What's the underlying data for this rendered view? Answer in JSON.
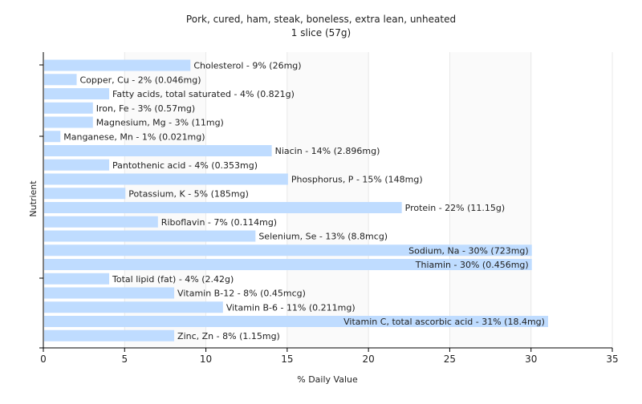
{
  "chart_data": {
    "type": "bar",
    "orientation": "horizontal",
    "title": "Pork, cured, ham, steak, boneless, extra lean, unheated",
    "subtitle": "1 slice (57g)",
    "xlabel": "% Daily Value",
    "ylabel": "Nutrient",
    "xlim": [
      0,
      35
    ],
    "xticks": [
      0,
      5,
      10,
      15,
      20,
      25,
      30,
      35
    ],
    "grid": true,
    "categories": [
      "Cholesterol",
      "Copper, Cu",
      "Fatty acids, total saturated",
      "Iron, Fe",
      "Magnesium, Mg",
      "Manganese, Mn",
      "Niacin",
      "Pantothenic acid",
      "Phosphorus, P",
      "Potassium, K",
      "Protein",
      "Riboflavin",
      "Selenium, Se",
      "Sodium, Na",
      "Thiamin",
      "Total lipid (fat)",
      "Vitamin B-12",
      "Vitamin B-6",
      "Vitamin C, total ascorbic acid",
      "Zinc, Zn"
    ],
    "values": [
      9,
      2,
      4,
      3,
      3,
      1,
      14,
      4,
      15,
      5,
      22,
      7,
      13,
      30,
      30,
      4,
      8,
      11,
      31,
      8
    ],
    "data_labels": [
      "Cholesterol - 9% (26mg)",
      "Copper, Cu - 2% (0.046mg)",
      "Fatty acids, total saturated - 4% (0.821g)",
      "Iron, Fe - 3% (0.57mg)",
      "Magnesium, Mg - 3% (11mg)",
      "Manganese, Mn - 1% (0.021mg)",
      "Niacin - 14% (2.896mg)",
      "Pantothenic acid - 4% (0.353mg)",
      "Phosphorus, P - 15% (148mg)",
      "Potassium, K - 5% (185mg)",
      "Protein - 22% (11.15g)",
      "Riboflavin - 7% (0.114mg)",
      "Selenium, Se - 13% (8.8mcg)",
      "Sodium, Na - 30% (723mg)",
      "Thiamin - 30% (0.456mg)",
      "Total lipid (fat) - 4% (2.42g)",
      "Vitamin B-12 - 8% (0.45mcg)",
      "Vitamin B-6 - 11% (0.211mg)",
      "Vitamin C, total ascorbic acid - 31% (18.4mg)",
      "Zinc, Zn - 8% (1.15mg)"
    ],
    "colors": {
      "bar": "#bfdcff",
      "axis": "#000000",
      "grid": "#e8e8e8",
      "plot_bg_band": "#f4f4f4",
      "text": "#222222"
    }
  }
}
